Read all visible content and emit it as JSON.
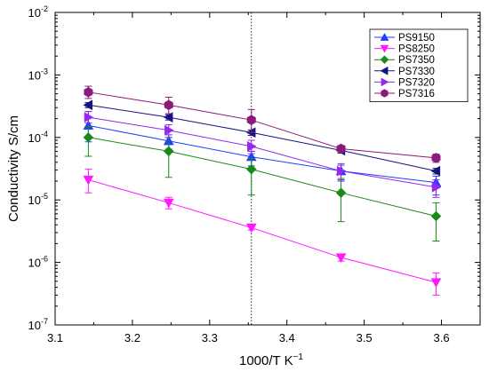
{
  "chart_data": {
    "type": "scatter",
    "xlabel": "1000/T K",
    "xlabel_superscript": "−1",
    "ylabel": "Conductivity S/cm",
    "xlim": [
      3.1,
      3.65
    ],
    "ylim": [
      1e-07,
      0.01
    ],
    "yscale": "log",
    "x_ticks": [
      3.1,
      3.2,
      3.3,
      3.4,
      3.5,
      3.6
    ],
    "x_tick_labels": [
      "3.1",
      "3.2",
      "3.3",
      "3.4",
      "3.5",
      "3.6"
    ],
    "y_ticks": [
      {
        "value": 1e-07,
        "base": "10",
        "exp": "-7"
      },
      {
        "value": 1e-06,
        "base": "10",
        "exp": "-6"
      },
      {
        "value": 1e-05,
        "base": "10",
        "exp": "-5"
      },
      {
        "value": 0.0001,
        "base": "10",
        "exp": "-4"
      },
      {
        "value": 0.001,
        "base": "10",
        "exp": "-3"
      },
      {
        "value": 0.01,
        "base": "10",
        "exp": "-2"
      }
    ],
    "grid": false,
    "legend_position": "top-right",
    "reference_line": {
      "x": 3.354,
      "style": "dotted"
    },
    "series": [
      {
        "name": "PS9150",
        "color": "#1f3fff",
        "marker": "triangle-up",
        "x": [
          3.143,
          3.247,
          3.354,
          3.47,
          3.593
        ],
        "y": [
          0.000155,
          8.8e-05,
          4.9e-05,
          2.9e-05,
          1.9e-05
        ],
        "err_low": [
          8.5e-05,
          6.5e-05,
          3.5e-05,
          2e-05,
          1.2e-05
        ],
        "err_high": [
          0.00026,
          0.00011,
          6e-05,
          3.6e-05,
          2.4e-05
        ]
      },
      {
        "name": "PS8250",
        "color": "#ff19ff",
        "marker": "triangle-down",
        "x": [
          3.143,
          3.247,
          3.354,
          3.47,
          3.593
        ],
        "y": [
          2.1e-05,
          9e-06,
          3.6e-06,
          1.2e-06,
          4.8e-07
        ],
        "err_low": [
          1.3e-05,
          7.2e-06,
          3.3e-06,
          1.05e-06,
          3e-07
        ],
        "err_high": [
          3.1e-05,
          1.1e-05,
          4e-06,
          1.35e-06,
          6.8e-07
        ]
      },
      {
        "name": "PS7350",
        "color": "#178a17",
        "marker": "diamond",
        "x": [
          3.143,
          3.247,
          3.354,
          3.47,
          3.593
        ],
        "y": [
          0.0001,
          6e-05,
          3.1e-05,
          1.3e-05,
          5.5e-06
        ],
        "err_low": [
          5e-05,
          2.3e-05,
          1.2e-05,
          4.5e-06,
          2.2e-06
        ],
        "err_high": [
          0.00015,
          0.0001,
          4.6e-05,
          2.2e-05,
          9e-06
        ]
      },
      {
        "name": "PS7330",
        "color": "#141480",
        "marker": "triangle-left",
        "x": [
          3.143,
          3.247,
          3.354,
          3.47,
          3.593
        ],
        "y": [
          0.00033,
          0.00021,
          0.00012,
          6.2e-05,
          2.9e-05
        ],
        "err_low": [
          0.0003,
          0.00019,
          0.000108,
          5.6e-05,
          2.6e-05
        ],
        "err_high": [
          0.00036,
          0.00023,
          0.000132,
          6.8e-05,
          3.2e-05
        ]
      },
      {
        "name": "PS7320",
        "color": "#9926ee",
        "marker": "triangle-right",
        "x": [
          3.143,
          3.247,
          3.354,
          3.47,
          3.593
        ],
        "y": [
          0.00021,
          0.00013,
          7.2e-05,
          2.9e-05,
          1.6e-05
        ],
        "err_low": [
          0.00017,
          0.0001,
          5.5e-05,
          2.1e-05,
          1.1e-05
        ],
        "err_high": [
          0.00026,
          0.00016,
          9e-05,
          3.8e-05,
          2.1e-05
        ]
      },
      {
        "name": "PS7316",
        "color": "#8b1a7a",
        "marker": "hexagon",
        "x": [
          3.143,
          3.247,
          3.354,
          3.47,
          3.593
        ],
        "y": [
          0.00053,
          0.00033,
          0.00019,
          6.6e-05,
          4.7e-05
        ],
        "err_low": [
          0.00042,
          0.00024,
          0.00012,
          5.9e-05,
          4e-05
        ],
        "err_high": [
          0.00066,
          0.00044,
          0.00028,
          7.4e-05,
          5.4e-05
        ]
      }
    ]
  }
}
